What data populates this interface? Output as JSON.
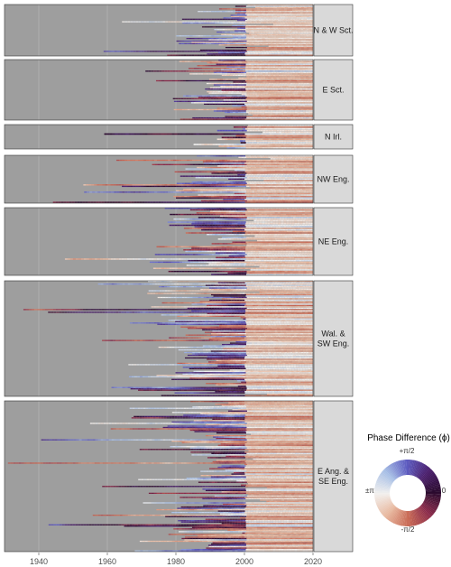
{
  "chart_data": {
    "type": "heatmap",
    "title": "",
    "xlabel": "",
    "ylabel": "",
    "xlim": [
      1930,
      2020
    ],
    "x_ticks": [
      1940,
      1960,
      1980,
      2000,
      2020
    ],
    "grid": true,
    "background_color": "#9e9e9e",
    "strip_color": "#d9d9d9",
    "panels": [
      {
        "label_lines": [
          "N & W Sct."
        ],
        "rows": 40,
        "median_start": 1993,
        "start_spread": 12
      },
      {
        "label_lines": [
          "E Sct."
        ],
        "rows": 44,
        "median_start": 1990,
        "start_spread": 12
      },
      {
        "label_lines": [
          "N Irl."
        ],
        "rows": 14,
        "median_start": 1995,
        "start_spread": 8
      },
      {
        "label_lines": [
          "NW Eng."
        ],
        "rows": 33,
        "median_start": 1990,
        "start_spread": 12
      },
      {
        "label_lines": [
          "NE Eng."
        ],
        "rows": 44,
        "median_start": 1989,
        "start_spread": 14
      },
      {
        "label_lines": [
          "Wal. &",
          "SW Eng."
        ],
        "rows": 86,
        "median_start": 1988,
        "start_spread": 14
      },
      {
        "label_lines": [
          "E Ang. &",
          "SE Eng."
        ],
        "rows": 110,
        "median_start": 1986,
        "start_spread": 16
      }
    ],
    "legend": {
      "title": "Phase Difference (ϕ)",
      "placement": "right",
      "labels": {
        "top": "+π/2",
        "right": "0",
        "bottom": "-π/2",
        "left": "±π"
      },
      "colormap": [
        "#2a0a2e",
        "#4b1f6d",
        "#5d5bc0",
        "#a8c0e6",
        "#f2f0ee",
        "#e8b9a0",
        "#c96a55",
        "#8a2a4a",
        "#2a0a2e"
      ]
    }
  }
}
